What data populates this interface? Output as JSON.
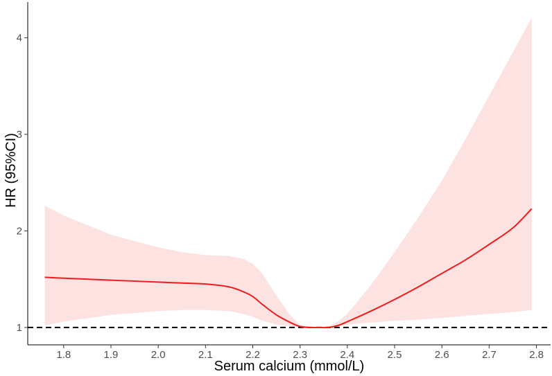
{
  "chart_data": {
    "type": "line",
    "title": "",
    "xlabel": "Serum calcium (mmol/L)",
    "ylabel": "HR (95%CI)",
    "xlim": [
      1.724,
      2.83
    ],
    "ylim": [
      0.82,
      4.37
    ],
    "x_ticks": [
      1.8,
      1.9,
      2.0,
      2.1,
      2.2,
      2.3,
      2.4,
      2.5,
      2.6,
      2.7,
      2.8
    ],
    "x_tick_labels": [
      "1.8",
      "1.9",
      "2.0",
      "2.1",
      "2.2",
      "2.3",
      "2.4",
      "2.5",
      "2.6",
      "2.7",
      "2.8"
    ],
    "y_ticks": [
      1,
      2,
      3,
      4
    ],
    "y_tick_labels": [
      "1",
      "2",
      "3",
      "4"
    ],
    "reference_line": {
      "y": 1,
      "style": "dashed"
    },
    "grid": false,
    "series": [
      {
        "line_color": "#ee1c1c",
        "band_color": "#fde2e2",
        "x": [
          1.76,
          1.8,
          1.9,
          2.0,
          2.05,
          2.1,
          2.15,
          2.18,
          2.2,
          2.22,
          2.25,
          2.28,
          2.3,
          2.32,
          2.34,
          2.36,
          2.38,
          2.4,
          2.45,
          2.5,
          2.55,
          2.6,
          2.65,
          2.7,
          2.75,
          2.79
        ],
        "y": [
          1.52,
          1.51,
          1.49,
          1.47,
          1.46,
          1.45,
          1.42,
          1.37,
          1.32,
          1.24,
          1.13,
          1.05,
          1.01,
          1.0,
          1.0,
          1.0,
          1.02,
          1.06,
          1.17,
          1.29,
          1.42,
          1.56,
          1.7,
          1.86,
          2.03,
          2.23
        ],
        "lower": [
          1.02,
          1.06,
          1.13,
          1.17,
          1.18,
          1.18,
          1.17,
          1.14,
          1.11,
          1.07,
          1.03,
          1.01,
          1.0,
          1.0,
          1.0,
          1.0,
          1.01,
          1.03,
          1.05,
          1.07,
          1.08,
          1.1,
          1.12,
          1.14,
          1.16,
          1.18
        ],
        "upper": [
          2.26,
          2.16,
          1.96,
          1.83,
          1.78,
          1.75,
          1.74,
          1.71,
          1.66,
          1.56,
          1.33,
          1.12,
          1.03,
          1.0,
          1.0,
          1.01,
          1.06,
          1.14,
          1.44,
          1.78,
          2.14,
          2.52,
          2.95,
          3.4,
          3.85,
          4.21
        ]
      }
    ]
  }
}
